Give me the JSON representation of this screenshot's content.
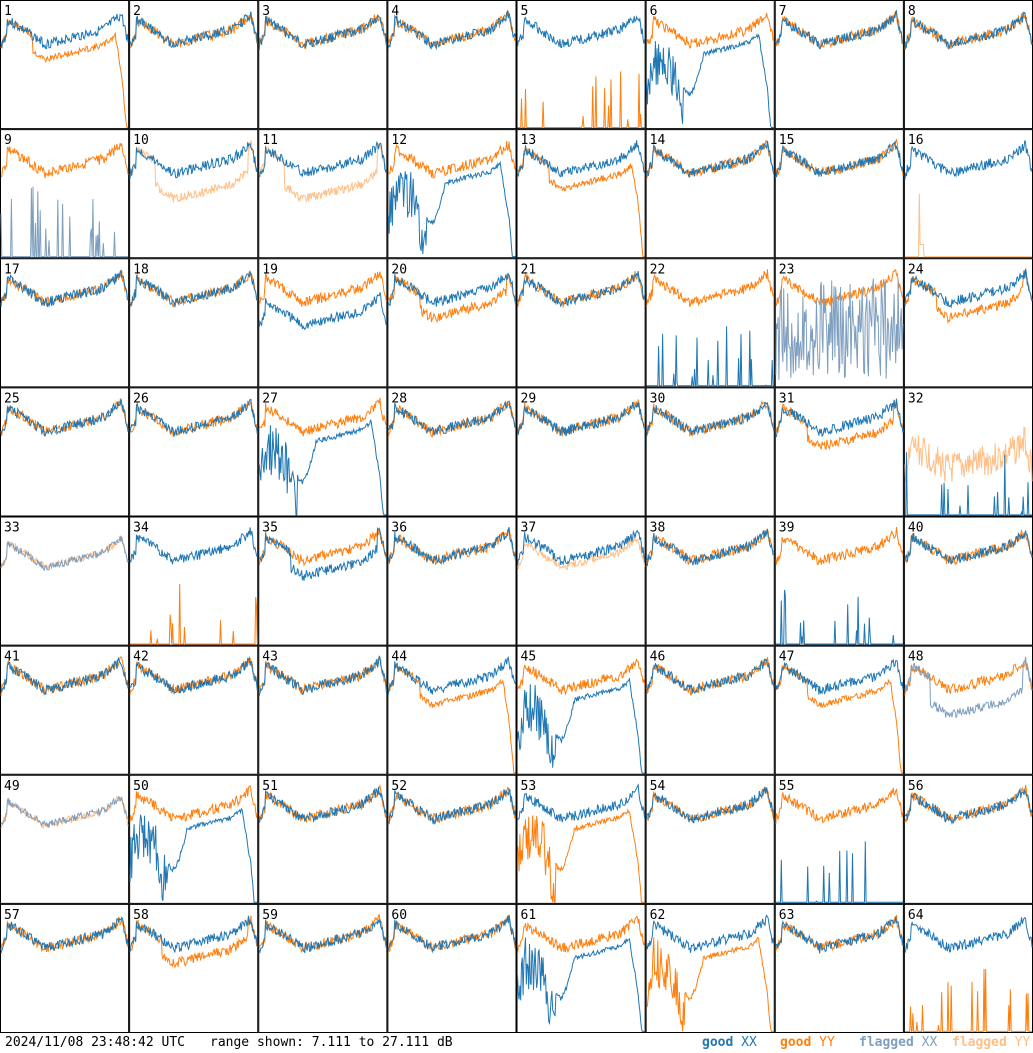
{
  "chart_data": {
    "type": "line",
    "layout": "8x8 small multiples, one panel per tile",
    "range_db": [
      7.111,
      27.111
    ],
    "x_axis_labels": false,
    "grid": false,
    "legend_placement": "bottom-right",
    "colors": {
      "good_xx": "#1f77b4",
      "good_yy": "#ff7f0e",
      "flagged_xx": "#7f9fbf",
      "flagged_yy": "#ffbf87",
      "frame": "#000000"
    },
    "panels": [
      {
        "label": "1",
        "xx": "normal",
        "yy": "fall_end"
      },
      {
        "label": "2",
        "xx": "normal",
        "yy": "normal"
      },
      {
        "label": "3",
        "xx": "normal",
        "yy": "normal"
      },
      {
        "label": "4",
        "xx": "normal",
        "yy": "normal"
      },
      {
        "label": "5",
        "xx": "normal",
        "yy": "spikes_low"
      },
      {
        "label": "6",
        "xx": "dip_fall",
        "yy": "normal"
      },
      {
        "label": "7",
        "xx": "normal",
        "yy": "normal"
      },
      {
        "label": "8",
        "xx": "normal",
        "yy": "normal"
      },
      {
        "label": "9",
        "xx": "flag_spikes",
        "yy": "normal"
      },
      {
        "label": "10",
        "xx": "normal",
        "yy": "flag_lowmid"
      },
      {
        "label": "11",
        "xx": "normal",
        "yy": "flag_lowmid"
      },
      {
        "label": "12",
        "xx": "dip_fall",
        "yy": "normal"
      },
      {
        "label": "13",
        "xx": "normal",
        "yy": "fall_end"
      },
      {
        "label": "14",
        "xx": "normal",
        "yy": "normal"
      },
      {
        "label": "15",
        "xx": "normal",
        "yy": "normal"
      },
      {
        "label": "16",
        "xx": "normal",
        "yy": "flag_spike_one"
      },
      {
        "label": "17",
        "xx": "normal",
        "yy": "normal"
      },
      {
        "label": "18",
        "xx": "normal",
        "yy": "normal"
      },
      {
        "label": "19",
        "xx": "low",
        "yy": "normal"
      },
      {
        "label": "20",
        "xx": "normal",
        "yy": "lowmid"
      },
      {
        "label": "21",
        "xx": "normal",
        "yy": "normal"
      },
      {
        "label": "22",
        "xx": "spikes_low",
        "yy": "normal"
      },
      {
        "label": "23",
        "xx": "flag_noise",
        "yy": "normal"
      },
      {
        "label": "24",
        "xx": "normal",
        "yy": "lowmid"
      },
      {
        "label": "25",
        "xx": "normal",
        "yy": "normal"
      },
      {
        "label": "26",
        "xx": "normal",
        "yy": "normal"
      },
      {
        "label": "27",
        "xx": "dip_fall",
        "yy": "normal"
      },
      {
        "label": "28",
        "xx": "normal",
        "yy": "normal"
      },
      {
        "label": "29",
        "xx": "normal",
        "yy": "normal"
      },
      {
        "label": "30",
        "xx": "normal",
        "yy": "normal"
      },
      {
        "label": "31",
        "xx": "normal",
        "yy": "lowmid"
      },
      {
        "label": "32",
        "xx": "spikes_low",
        "yy": "flag_noisy"
      },
      {
        "label": "33",
        "xx": "flag_normal",
        "yy": "flag_normal"
      },
      {
        "label": "34",
        "xx": "normal",
        "yy": "spikes_low"
      },
      {
        "label": "35",
        "xx": "lowmid",
        "yy": "normal"
      },
      {
        "label": "36",
        "xx": "normal",
        "yy": "normal"
      },
      {
        "label": "37",
        "xx": "normal",
        "yy": "flag_normal"
      },
      {
        "label": "38",
        "xx": "normal",
        "yy": "normal"
      },
      {
        "label": "39",
        "xx": "spikes_low",
        "yy": "normal"
      },
      {
        "label": "40",
        "xx": "normal",
        "yy": "normal"
      },
      {
        "label": "41",
        "xx": "normal",
        "yy": "normal"
      },
      {
        "label": "42",
        "xx": "normal",
        "yy": "normal"
      },
      {
        "label": "43",
        "xx": "normal",
        "yy": "normal"
      },
      {
        "label": "44",
        "xx": "normal",
        "yy": "fall_end"
      },
      {
        "label": "45",
        "xx": "dip_fall",
        "yy": "normal"
      },
      {
        "label": "46",
        "xx": "normal",
        "yy": "normal"
      },
      {
        "label": "47",
        "xx": "normal",
        "yy": "fall_end"
      },
      {
        "label": "48",
        "xx": "flag_lowmid",
        "yy": "normal"
      },
      {
        "label": "49",
        "xx": "flag_normal",
        "yy": "flag_normal"
      },
      {
        "label": "50",
        "xx": "dip_fall",
        "yy": "normal"
      },
      {
        "label": "51",
        "xx": "normal",
        "yy": "normal"
      },
      {
        "label": "52",
        "xx": "normal",
        "yy": "normal"
      },
      {
        "label": "53",
        "xx": "normal",
        "yy": "dip_fall"
      },
      {
        "label": "54",
        "xx": "normal",
        "yy": "normal"
      },
      {
        "label": "55",
        "xx": "spikes_low",
        "yy": "normal"
      },
      {
        "label": "56",
        "xx": "normal",
        "yy": "normal"
      },
      {
        "label": "57",
        "xx": "normal",
        "yy": "normal"
      },
      {
        "label": "58",
        "xx": "normal",
        "yy": "lowmid"
      },
      {
        "label": "59",
        "xx": "normal",
        "yy": "normal"
      },
      {
        "label": "60",
        "xx": "normal",
        "yy": "normal"
      },
      {
        "label": "61",
        "xx": "dip_fall",
        "yy": "normal"
      },
      {
        "label": "62",
        "xx": "normal",
        "yy": "dip_fall"
      },
      {
        "label": "63",
        "xx": "normal",
        "yy": "normal"
      },
      {
        "label": "64",
        "xx": "normal",
        "yy": "spikes_low"
      }
    ]
  },
  "footer": {
    "timestamp": "2024/11/08 23:48:42 UTC",
    "range_text": "range shown: 7.111 to 27.111 dB",
    "legend": [
      {
        "key": "good_xx",
        "word": "good",
        "pol": "XX"
      },
      {
        "key": "good_yy",
        "word": "good",
        "pol": "YY"
      },
      {
        "key": "flagged_xx",
        "word": "flagged",
        "pol": "XX"
      },
      {
        "key": "flagged_yy",
        "word": "flagged",
        "pol": "YY"
      }
    ]
  }
}
